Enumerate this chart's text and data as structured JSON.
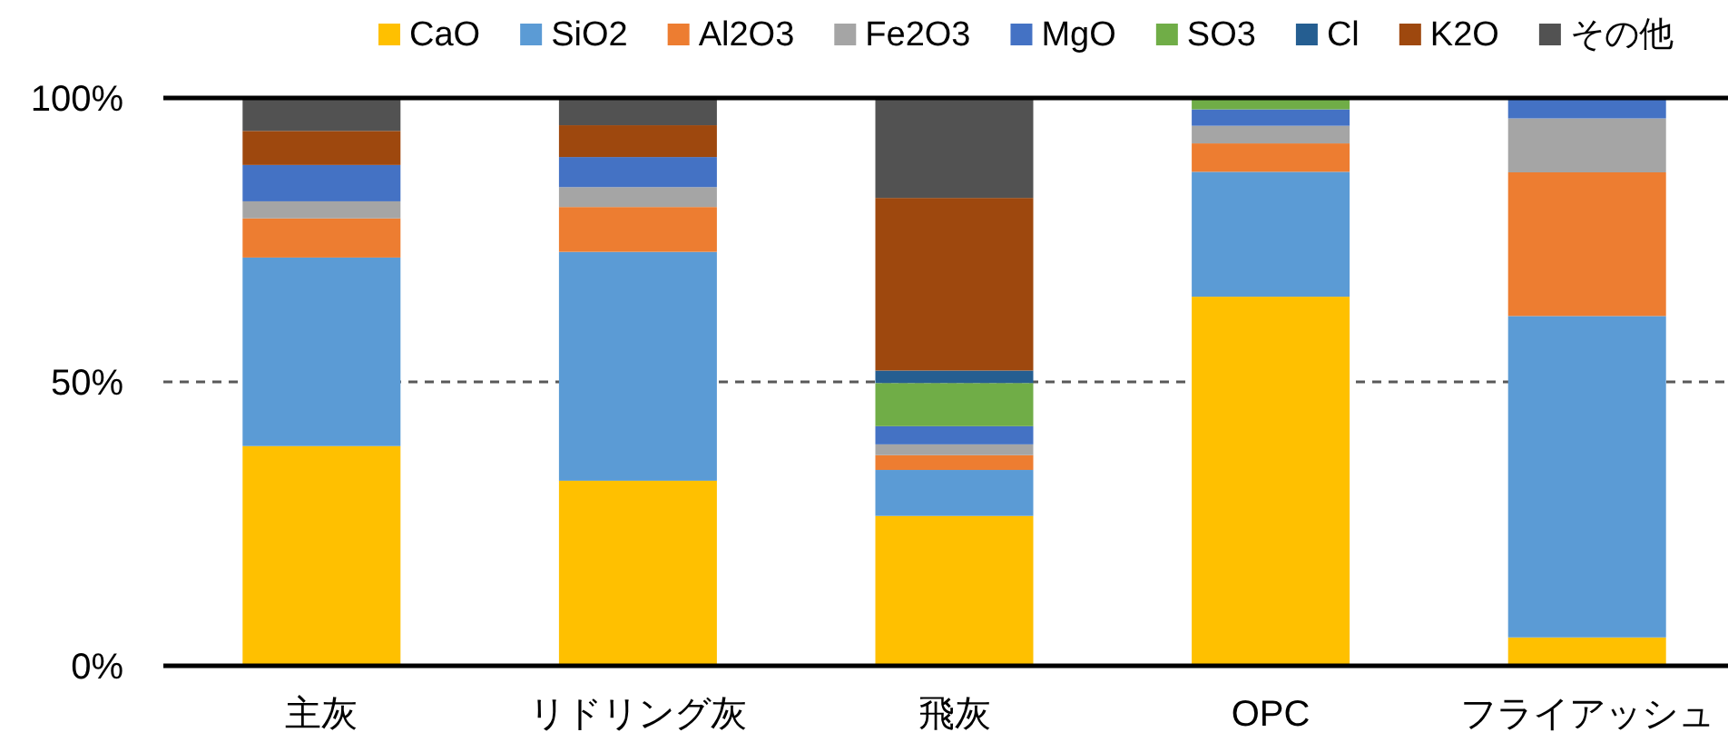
{
  "chart_data": {
    "type": "bar",
    "stacked": true,
    "categories": [
      "主灰",
      "リドリング灰",
      "飛灰",
      "OPC",
      "フライアッシュ"
    ],
    "series": [
      {
        "name": "CaO",
        "color": "#ffc000",
        "values": [
          38.7,
          32.6,
          26.4,
          65.0,
          5.0
        ]
      },
      {
        "name": "SiO2",
        "color": "#5b9bd5",
        "values": [
          33.2,
          40.3,
          8.1,
          22.0,
          56.6
        ]
      },
      {
        "name": "Al2O3",
        "color": "#ed7d31",
        "values": [
          6.9,
          7.9,
          2.6,
          5.0,
          25.3
        ]
      },
      {
        "name": "Fe2O3",
        "color": "#a5a5a5",
        "values": [
          3.0,
          3.5,
          1.9,
          3.1,
          9.5
        ]
      },
      {
        "name": "MgO",
        "color": "#4472c4",
        "values": [
          6.4,
          5.3,
          3.2,
          2.9,
          3.6
        ]
      },
      {
        "name": "SO3",
        "color": "#70ad47",
        "values": [
          0,
          0,
          7.6,
          2.0,
          0
        ]
      },
      {
        "name": "Cl",
        "color": "#255e91",
        "values": [
          0,
          0,
          2.2,
          0,
          0
        ]
      },
      {
        "name": "K2O",
        "color": "#9e480e",
        "values": [
          6.0,
          5.6,
          30.4,
          0,
          0
        ]
      },
      {
        "name": "その他",
        "color": "#525252",
        "values": [
          5.8,
          4.8,
          17.6,
          0,
          0
        ]
      }
    ],
    "ylim": [
      0,
      100
    ],
    "yticks": [
      {
        "value": 0,
        "label": "0%"
      },
      {
        "value": 50,
        "label": "50%"
      },
      {
        "value": 100,
        "label": "100%"
      }
    ],
    "grid": "y",
    "legend": "top"
  }
}
